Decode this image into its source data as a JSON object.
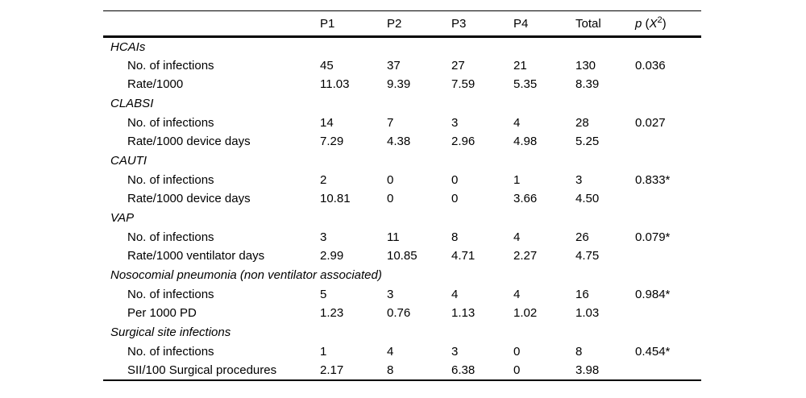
{
  "page": {
    "background": "#ffffff",
    "text_color": "#000000"
  },
  "table": {
    "header": {
      "cols": [
        "P1",
        "P2",
        "P3",
        "P4",
        "Total"
      ],
      "p_col": {
        "p": "p",
        "open": " (",
        "x": "X",
        "sup": "2",
        "close": ")"
      }
    },
    "sections": [
      {
        "title": "HCAIs",
        "rows": [
          {
            "label": "No. of infections",
            "values": [
              "45",
              "37",
              "27",
              "21",
              "130"
            ],
            "p": "0.036"
          },
          {
            "label": "Rate/1000",
            "values": [
              "11.03",
              "9.39",
              "7.59",
              "5.35",
              "8.39"
            ],
            "p": ""
          }
        ]
      },
      {
        "title": "CLABSI",
        "rows": [
          {
            "label": "No. of infections",
            "values": [
              "14",
              "7",
              "3",
              "4",
              "28"
            ],
            "p": "0.027"
          },
          {
            "label": "Rate/1000 device days",
            "values": [
              "7.29",
              "4.38",
              "2.96",
              "4.98",
              "5.25"
            ],
            "p": ""
          }
        ]
      },
      {
        "title": "CAUTI",
        "rows": [
          {
            "label": "No. of infections",
            "values": [
              "2",
              "0",
              "0",
              "1",
              "3"
            ],
            "p": "0.833*"
          },
          {
            "label": "Rate/1000 device days",
            "values": [
              "10.81",
              "0",
              "0",
              "3.66",
              "4.50"
            ],
            "p": ""
          }
        ]
      },
      {
        "title": "VAP",
        "rows": [
          {
            "label": "No. of infections",
            "values": [
              "3",
              "11",
              "8",
              "4",
              "26"
            ],
            "p": "0.079*"
          },
          {
            "label": "Rate/1000 ventilator days",
            "values": [
              "2.99",
              "10.85",
              "4.71",
              "2.27",
              "4.75"
            ],
            "p": ""
          }
        ]
      },
      {
        "title": "Nosocomial pneumonia (non ventilator associated)",
        "rows": [
          {
            "label": "No. of infections",
            "values": [
              "5",
              "3",
              "4",
              "4",
              "16"
            ],
            "p": "0.984*"
          },
          {
            "label": "Per 1000 PD",
            "values": [
              "1.23",
              "0.76",
              "1.13",
              "1.02",
              "1.03"
            ],
            "p": ""
          }
        ]
      },
      {
        "title": "Surgical site infections",
        "rows": [
          {
            "label": "No. of infections",
            "values": [
              "1",
              "4",
              "3",
              "0",
              "8"
            ],
            "p": "0.454*"
          },
          {
            "label": "SII/100 Surgical procedures",
            "values": [
              "2.17",
              "8",
              "6.38",
              "0",
              "3.98"
            ],
            "p": ""
          }
        ]
      }
    ]
  }
}
